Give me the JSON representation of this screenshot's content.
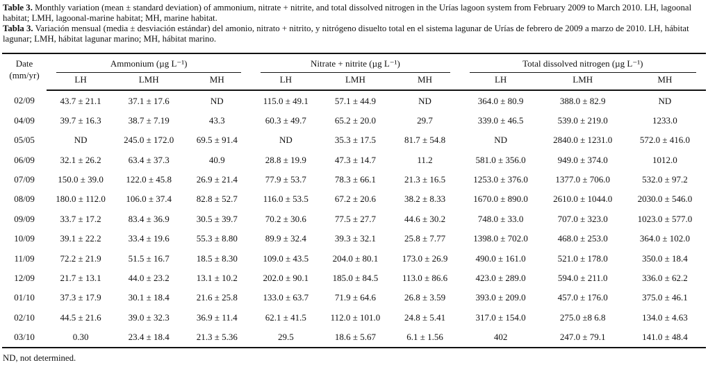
{
  "caption": {
    "english": {
      "label": "Table 3.",
      "text": " Monthly variation (mean ± standard deviation) of ammonium, nitrate + nitrite, and total dissolved nitrogen in the Urías lagoon system from February 2009 to March 2010. LH, lagoonal habitat; LMH, lagoonal-marine habitat; MH, marine habitat."
    },
    "spanish": {
      "label": "Tabla 3.",
      "text": " Variación mensual (media ± desviación estándar) del amonio, nitrato + nitrito, y nitrógeno disuelto total en el sistema lagunar de Urías de febrero de 2009 a marzo de 2010. LH, hábitat lagunar; LMH, hábitat lagunar marino; MH, hábitat marino."
    }
  },
  "table": {
    "date_header_line1": "Date",
    "date_header_line2": "(mm/yr)",
    "groups": [
      {
        "label": "Ammonium (µg L⁻¹)"
      },
      {
        "label": "Nitrate + nitrite (µg L⁻¹)"
      },
      {
        "label": "Total dissolved nitrogen (µg L⁻¹)"
      }
    ],
    "sub_headers": [
      "LH",
      "LMH",
      "MH",
      "LH",
      "LMH",
      "MH",
      "LH",
      "LMH",
      "MH"
    ],
    "rows": [
      {
        "date": "02/09",
        "values": [
          "43.7 ± 21.1",
          "37.1 ± 17.6",
          "ND",
          "115.0 ± 49.1",
          "57.1 ± 44.9",
          "ND",
          "364.0 ± 80.9",
          "388.0 ± 82.9",
          "ND"
        ]
      },
      {
        "date": "04/09",
        "values": [
          "39.7 ± 16.3",
          "38.7 ± 7.19",
          "43.3",
          "60.3 ± 49.7",
          "65.2 ± 20.0",
          "29.7",
          "339.0 ± 46.5",
          "539.0 ± 219.0",
          "1233.0"
        ]
      },
      {
        "date": "05/05",
        "values": [
          "ND",
          "245.0 ± 172.0",
          "69.5 ± 91.4",
          "ND",
          "35.3 ± 17.5",
          "81.7 ± 54.8",
          "ND",
          "2840.0 ± 1231.0",
          "572.0 ± 416.0"
        ]
      },
      {
        "date": "06/09",
        "values": [
          "32.1 ± 26.2",
          "63.4 ± 37.3",
          "40.9",
          "28.8 ± 19.9",
          "47.3 ± 14.7",
          "11.2",
          "581.0 ± 356.0",
          "949.0 ± 374.0",
          "1012.0"
        ]
      },
      {
        "date": "07/09",
        "values": [
          "150.0 ± 39.0",
          "122.0 ± 45.8",
          "26.9 ± 21.4",
          "77.9 ± 53.7",
          "78.3 ± 66.1",
          "21.3 ± 16.5",
          "1253.0 ± 376.0",
          "1377.0 ± 706.0",
          "532.0 ± 97.2"
        ]
      },
      {
        "date": "08/09",
        "values": [
          "180.0 ± 112.0",
          "106.0 ± 37.4",
          "82.8 ± 52.7",
          "116.0 ± 53.5",
          "67.2 ± 20.6",
          "38.2 ± 8.33",
          "1670.0 ± 890.0",
          "2610.0 ± 1044.0",
          "2030.0 ± 546.0"
        ]
      },
      {
        "date": "09/09",
        "values": [
          "33.7 ± 17.2",
          "83.4 ± 36.9",
          "30.5 ± 39.7",
          "70.2 ± 30.6",
          "77.5 ± 27.7",
          "44.6 ± 30.2",
          "748.0 ± 33.0",
          "707.0 ± 323.0",
          "1023.0 ± 577.0"
        ]
      },
      {
        "date": "10/09",
        "values": [
          "39.1 ± 22.2",
          "33.4 ± 19.6",
          "55.3 ± 8.80",
          "89.9 ± 32.4",
          "39.3 ± 32.1",
          "25.8 ± 7.77",
          "1398.0 ± 702.0",
          "468.0 ± 253.0",
          "364.0 ± 102.0"
        ]
      },
      {
        "date": "11/09",
        "values": [
          "72.2 ± 21.9",
          "51.5 ± 16.7",
          "18.5 ± 8.30",
          "109.0 ± 43.5",
          "204.0 ± 80.1",
          "173.0 ± 26.9",
          "490.0 ± 161.0",
          "521.0 ± 178.0",
          "350.0 ± 18.4"
        ]
      },
      {
        "date": "12/09",
        "values": [
          "21.7 ± 13.1",
          "44.0 ± 23.2",
          "13.1 ± 10.2",
          "202.0 ± 90.1",
          "185.0 ± 84.5",
          "113.0 ± 86.6",
          "423.0 ± 289.0",
          "594.0 ± 211.0",
          "336.0 ± 62.2"
        ]
      },
      {
        "date": "01/10",
        "values": [
          "37.3 ± 17.9",
          "30.1 ± 18.4",
          "21.6 ± 25.8",
          "133.0 ± 63.7",
          "71.9 ± 64.6",
          "26.8 ± 3.59",
          "393.0 ± 209.0",
          "457.0 ± 176.0",
          "375.0 ± 46.1"
        ]
      },
      {
        "date": "02/10",
        "values": [
          "44.5 ± 21.6",
          "39.0 ± 32.3",
          "36.9 ± 11.4",
          "62.1 ± 41.5",
          "112.0 ± 101.0",
          "24.8 ± 5.41",
          "317.0 ± 154.0",
          "275.0 ±8 6.8",
          "134.0 ± 4.63"
        ]
      },
      {
        "date": "03/10",
        "values": [
          "0.30",
          "23.4 ± 18.4",
          "21.3 ± 5.36",
          "29.5",
          "18.6 ± 5.67",
          "6.1 ± 1.56",
          "402",
          "247.0 ± 79.1",
          "141.0 ± 48.4"
        ]
      }
    ]
  },
  "footnote": "ND, not determined."
}
